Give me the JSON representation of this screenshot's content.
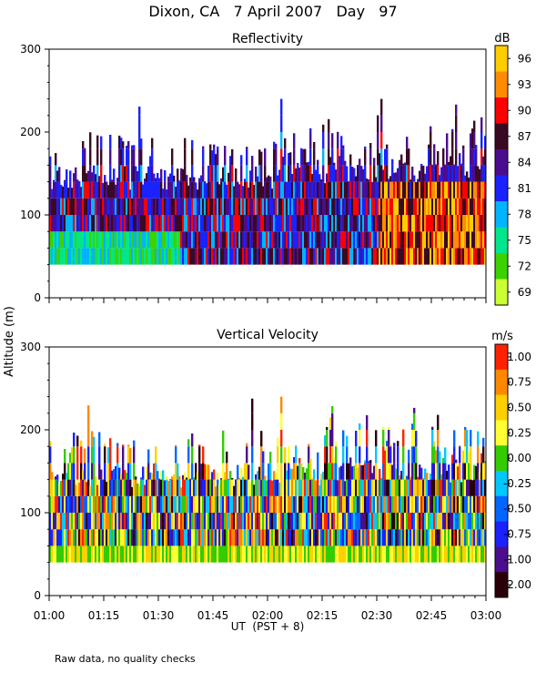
{
  "title": "Dixon, CA   7 April 2007   Day   97",
  "shared_ylabel": "Altitude (m)",
  "xlabel": "UT  (PST + 8)",
  "footer_note": "Raw data, no quality checks",
  "chart_data": [
    {
      "type": "heatmap",
      "title": "Reflectivity",
      "units": "dB",
      "x_ticks": [
        "01:00",
        "01:15",
        "01:30",
        "01:45",
        "02:00",
        "02:15",
        "02:30",
        "02:45",
        "03:00"
      ],
      "x_range": [
        "01:00",
        "03:00"
      ],
      "y_ticks": [
        0,
        100,
        200,
        300
      ],
      "ylim": [
        0,
        300
      ],
      "data_altitude_range_m": [
        40,
        280
      ],
      "colorbar_labels": [
        "96",
        "93",
        "90",
        "87",
        "84",
        "81",
        "78",
        "75",
        "72",
        "69"
      ],
      "colorbar_colors": [
        "#ffcc00",
        "#ff8c00",
        "#ff0000",
        "#3a0a22",
        "#4b0d8f",
        "#1a22ff",
        "#00b4ff",
        "#00e68c",
        "#3cd200",
        "#ccff33"
      ],
      "colorbar_range": [
        69,
        99
      ]
    },
    {
      "type": "heatmap",
      "title": "Vertical Velocity",
      "units": "m/s",
      "x_ticks": [
        "01:00",
        "01:15",
        "01:30",
        "01:45",
        "02:00",
        "02:15",
        "02:30",
        "02:45",
        "03:00"
      ],
      "x_range": [
        "01:00",
        "03:00"
      ],
      "y_ticks": [
        0,
        100,
        200,
        300
      ],
      "ylim": [
        0,
        300
      ],
      "data_altitude_range_m": [
        40,
        280
      ],
      "colorbar_labels": [
        "1.00",
        "0.75",
        "0.50",
        "0.25",
        "0.00",
        "-0.25",
        "-0.50",
        "-0.75",
        "-1.00",
        "-2.00"
      ],
      "colorbar_colors": [
        "#ff2200",
        "#ff8800",
        "#ffd000",
        "#ffff33",
        "#33cc00",
        "#00c8ff",
        "#0066ff",
        "#1a22ff",
        "#4b0d8f",
        "#2a0008"
      ],
      "colorbar_range": [
        -2.0,
        1.25
      ]
    }
  ]
}
